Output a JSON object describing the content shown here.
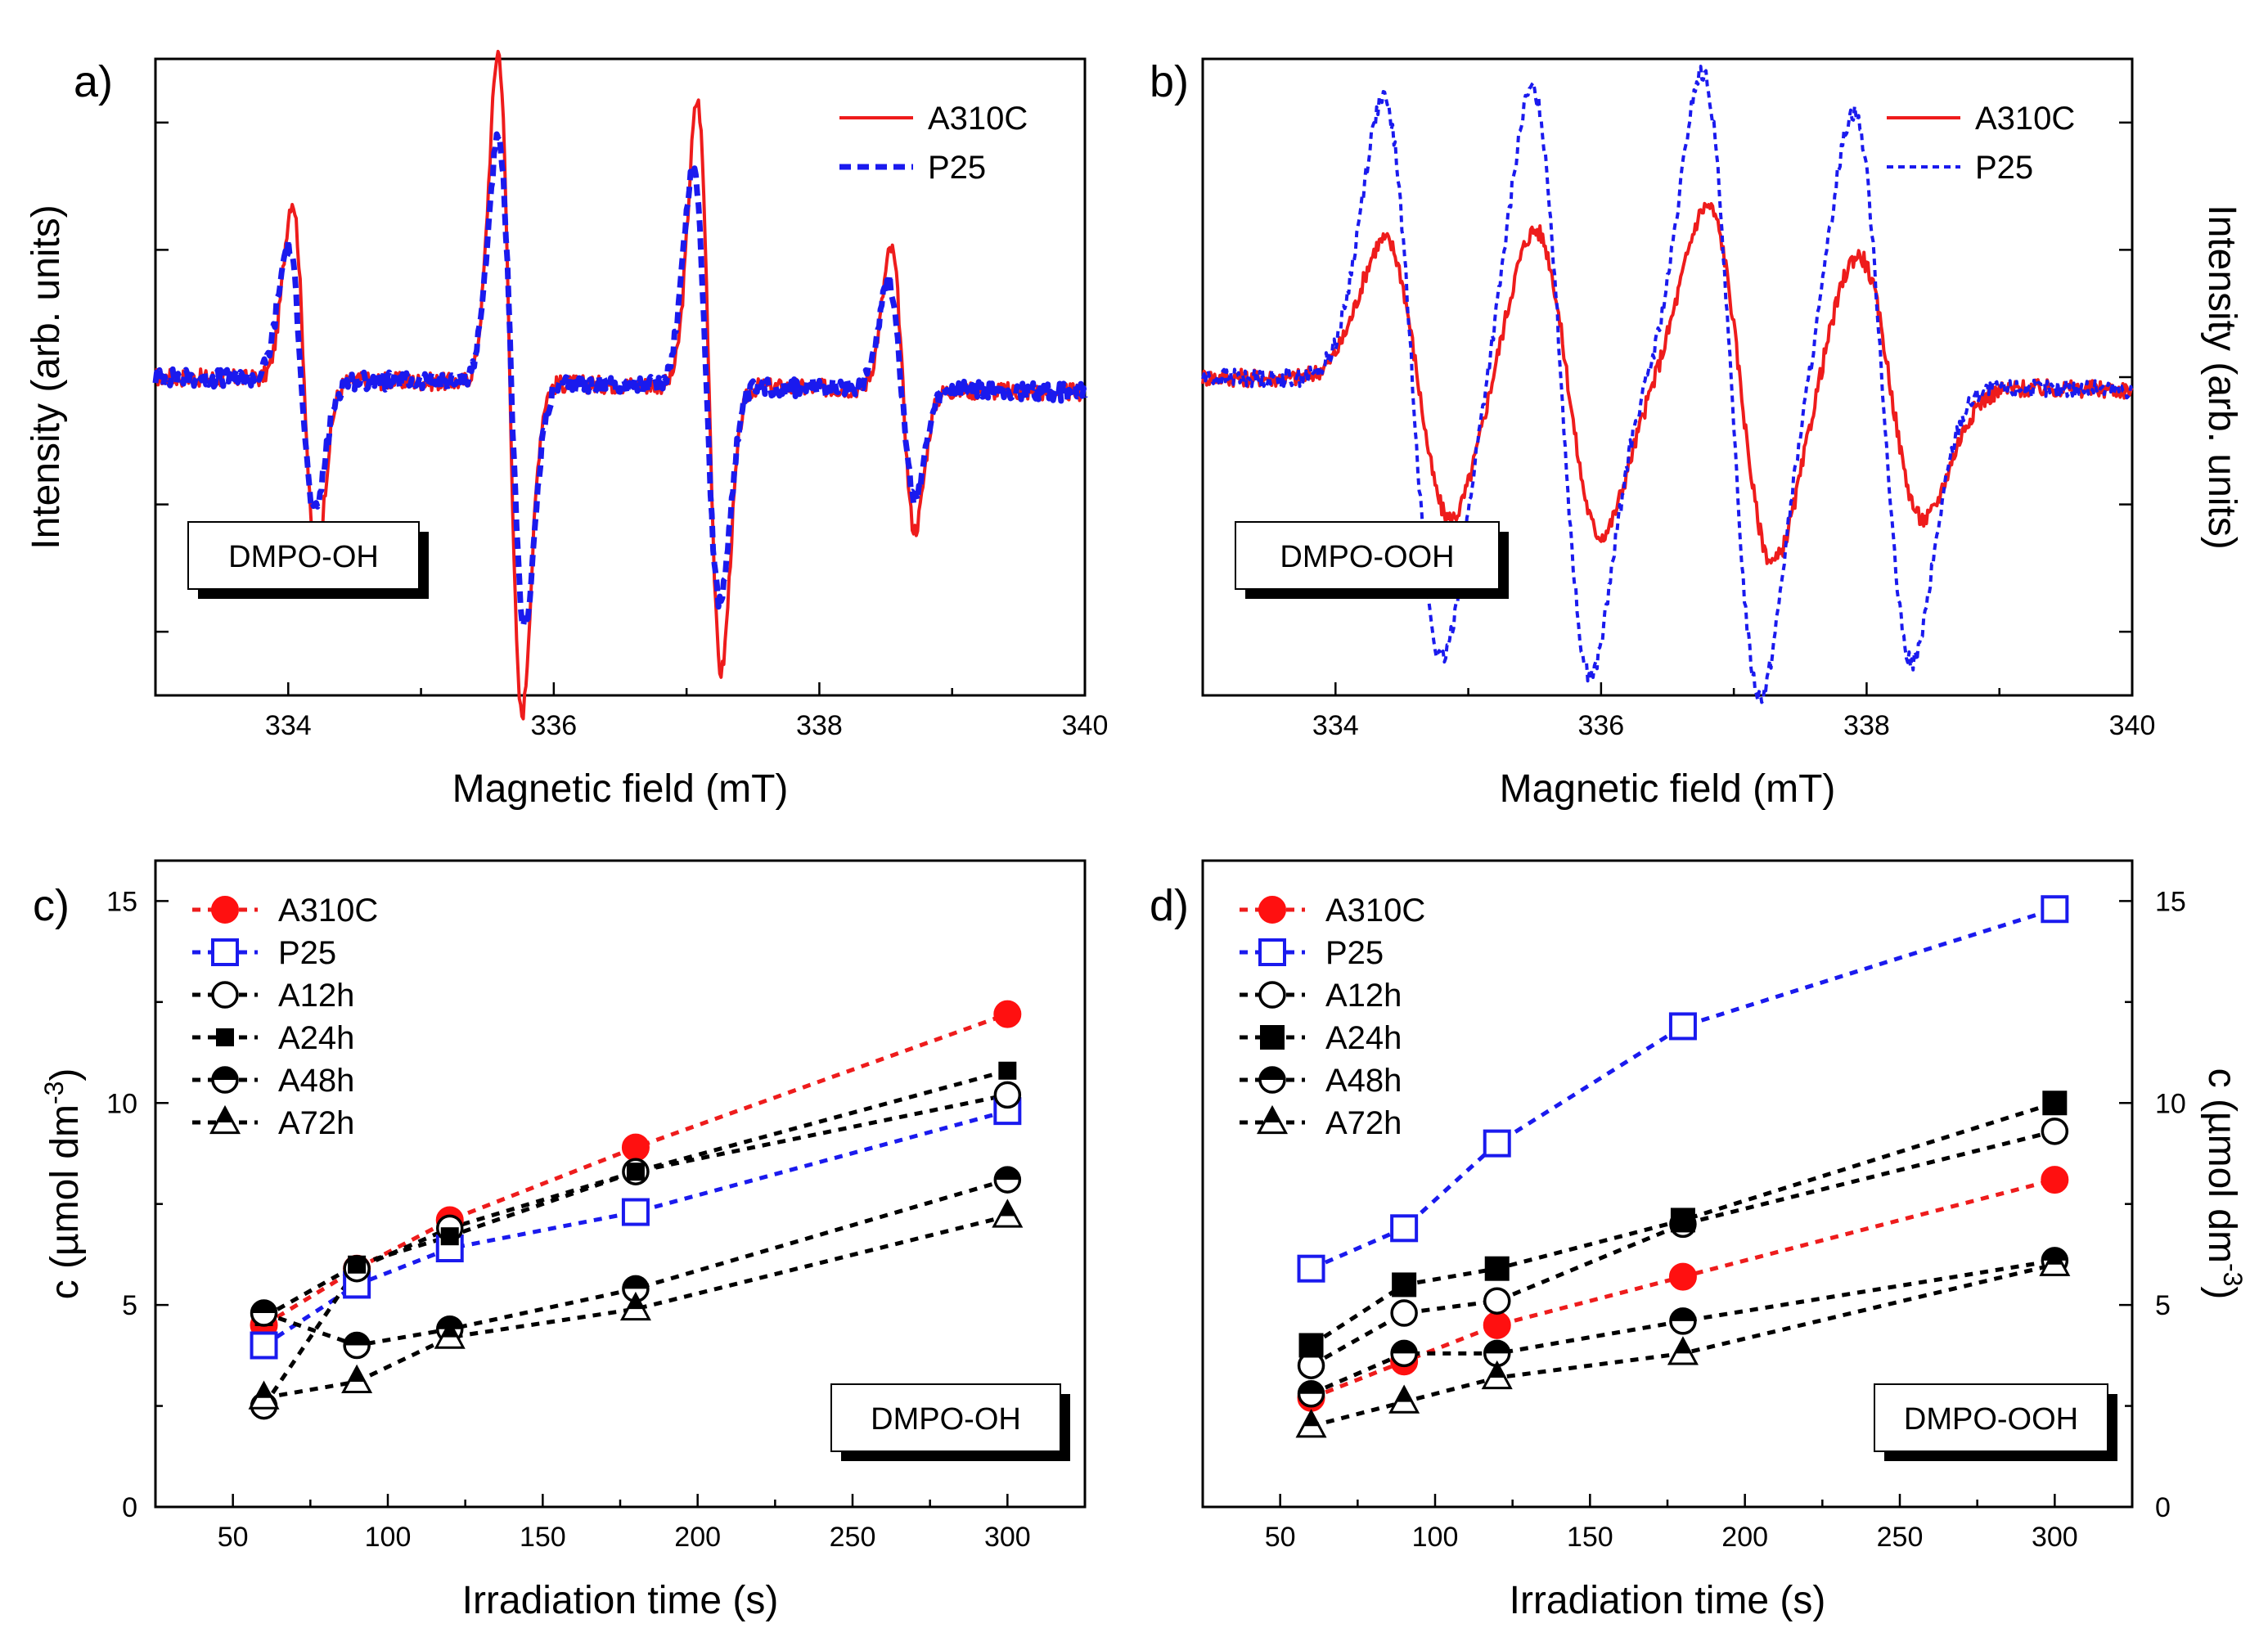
{
  "chart_data": [
    {
      "panel": "a)",
      "type": "line",
      "xlabel": "Magnetic field (mT)",
      "ylabel": "Intensity (arb. units)",
      "xlim": [
        333,
        340
      ],
      "xticks": [
        334,
        336,
        338,
        340
      ],
      "ylim": [
        -1.25,
        1.25
      ],
      "box_label": "DMPO-OH",
      "legend": "top-right",
      "series": [
        {
          "name": "A310C",
          "color": "#ee1c1c",
          "style": "solid",
          "lines": [
            {
              "center": 334.12,
              "amp": 0.7,
              "width": 0.09
            },
            {
              "center": 335.67,
              "amp": 1.3,
              "width": 0.09
            },
            {
              "center": 337.17,
              "amp": 1.12,
              "width": 0.09
            },
            {
              "center": 338.63,
              "amp": 0.55,
              "width": 0.09
            }
          ]
        },
        {
          "name": "P25",
          "color": "#1a1aee",
          "style": "dash",
          "lines": [
            {
              "center": 334.1,
              "amp": 0.52,
              "width": 0.1
            },
            {
              "center": 335.68,
              "amp": 0.95,
              "width": 0.1
            },
            {
              "center": 337.15,
              "amp": 0.85,
              "width": 0.1
            },
            {
              "center": 338.62,
              "amp": 0.42,
              "width": 0.1
            }
          ]
        }
      ]
    },
    {
      "panel": "b)",
      "type": "line",
      "xlabel": "Magnetic field (mT)",
      "ylabel": "Intensity (arb. units)",
      "xlim": [
        333,
        340
      ],
      "xticks": [
        334,
        336,
        338,
        340
      ],
      "ylim": [
        -1.25,
        1.25
      ],
      "box_label": "DMPO-OOH",
      "legend": "top-right",
      "series": [
        {
          "name": "A310C",
          "color": "#ee1c1c",
          "style": "solid",
          "lines": [
            {
              "center": 334.62,
              "amp": 0.55,
              "width": 0.25
            },
            {
              "center": 335.75,
              "amp": 0.6,
              "width": 0.25
            },
            {
              "center": 337.05,
              "amp": 0.7,
              "width": 0.25
            },
            {
              "center": 338.18,
              "amp": 0.52,
              "width": 0.25
            }
          ]
        },
        {
          "name": "P25",
          "color": "#1a1aee",
          "style": "dot",
          "lines": [
            {
              "center": 334.58,
              "amp": 1.1,
              "width": 0.22
            },
            {
              "center": 335.7,
              "amp": 1.15,
              "width": 0.22
            },
            {
              "center": 336.98,
              "amp": 1.22,
              "width": 0.22
            },
            {
              "center": 338.12,
              "amp": 1.08,
              "width": 0.22
            }
          ]
        }
      ]
    },
    {
      "panel": "c)",
      "type": "line",
      "xlabel": "Irradiation time (s)",
      "ylabel": "c (µmol dm",
      "ylabel_sup": "-3",
      "ylabel_close": ")",
      "xlim": [
        25,
        325
      ],
      "xticks": [
        50,
        100,
        150,
        200,
        250,
        300
      ],
      "ylim": [
        0,
        16
      ],
      "yticks": [
        0,
        5,
        10,
        15
      ],
      "box_label": "DMPO-OH",
      "legend": "top-left",
      "x": [
        60,
        90,
        120,
        180,
        300
      ],
      "series": [
        {
          "name": "A310C",
          "color": "#ee1c1c",
          "marker": "circle-red",
          "values": [
            4.5,
            5.9,
            7.1,
            8.9,
            12.2
          ]
        },
        {
          "name": "P25",
          "color": "#1a1aee",
          "marker": "square-open-blue",
          "values": [
            4.0,
            5.5,
            6.4,
            7.3,
            9.8
          ]
        },
        {
          "name": "A12h",
          "color": "#000000",
          "marker": "circle-open",
          "values": [
            2.5,
            5.9,
            6.9,
            8.3,
            10.2
          ]
        },
        {
          "name": "A24h",
          "color": "#000000",
          "marker": "square-filled-small",
          "values": [
            4.7,
            6.0,
            6.7,
            8.3,
            10.8
          ]
        },
        {
          "name": "A48h",
          "color": "#000000",
          "marker": "circle-half",
          "values": [
            4.8,
            4.0,
            4.4,
            5.4,
            8.1
          ]
        },
        {
          "name": "A72h",
          "color": "#000000",
          "marker": "triangle-half",
          "values": [
            2.7,
            3.1,
            4.2,
            4.9,
            7.2
          ]
        }
      ]
    },
    {
      "panel": "d)",
      "type": "line",
      "xlabel": "Irradiation time (s)",
      "ylabel": "c (µmol dm",
      "ylabel_sup": "-3",
      "ylabel_close": ")",
      "xlim": [
        25,
        325
      ],
      "xticks": [
        50,
        100,
        150,
        200,
        250,
        300
      ],
      "ylim": [
        0,
        16
      ],
      "yticks": [
        0,
        5,
        10,
        15
      ],
      "box_label": "DMPO-OOH",
      "legend": "top-left",
      "x": [
        60,
        90,
        120,
        180,
        300
      ],
      "series": [
        {
          "name": "A310C",
          "color": "#ee1c1c",
          "marker": "circle-red",
          "values": [
            2.7,
            3.6,
            4.5,
            5.7,
            8.1
          ]
        },
        {
          "name": "P25",
          "color": "#1a1aee",
          "marker": "square-open-blue",
          "values": [
            5.9,
            6.9,
            9.0,
            11.9,
            14.8
          ]
        },
        {
          "name": "A12h",
          "color": "#000000",
          "marker": "circle-open",
          "values": [
            3.5,
            4.8,
            5.1,
            7.0,
            9.3
          ]
        },
        {
          "name": "A24h",
          "color": "#000000",
          "marker": "square-filled",
          "values": [
            4.0,
            5.5,
            5.9,
            7.1,
            10.0
          ]
        },
        {
          "name": "A48h",
          "color": "#000000",
          "marker": "circle-half",
          "values": [
            2.8,
            3.8,
            3.8,
            4.6,
            6.1
          ]
        },
        {
          "name": "A72h",
          "color": "#000000",
          "marker": "triangle-half",
          "values": [
            2.0,
            2.6,
            3.2,
            3.8,
            6.0
          ]
        }
      ]
    }
  ]
}
